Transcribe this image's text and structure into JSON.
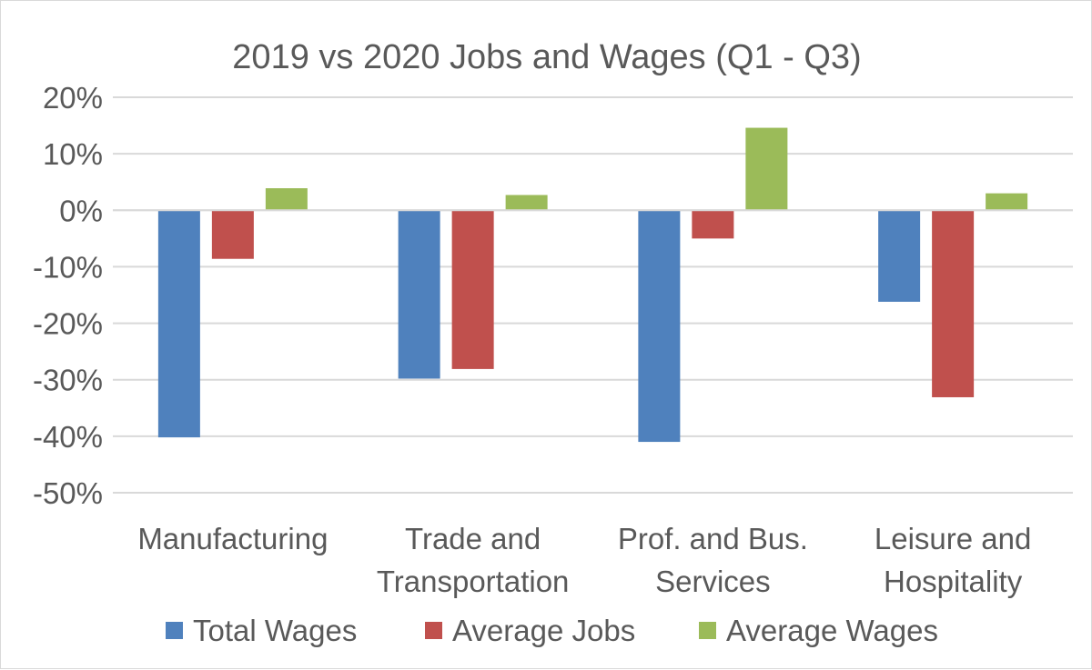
{
  "chart_data": {
    "type": "bar",
    "title": "2019 vs 2020 Jobs and Wages (Q1 - Q3)",
    "categories": [
      [
        "Manufacturing"
      ],
      [
        "Trade and",
        "Transportation"
      ],
      [
        "Prof. and Bus.",
        "Services"
      ],
      [
        "Leisure and",
        "Hospitality"
      ]
    ],
    "series": [
      {
        "name": "Total Wages",
        "color": "#4f81bd",
        "values": [
          -40.2,
          -29.8,
          -41.0,
          -16.2
        ]
      },
      {
        "name": "Average Jobs",
        "color": "#c0504d",
        "values": [
          -8.6,
          -28.1,
          -5.0,
          -33.1
        ]
      },
      {
        "name": "Average Wages",
        "color": "#9bbb59",
        "values": [
          3.9,
          2.7,
          14.6,
          3.0
        ]
      }
    ],
    "ylim": [
      -50,
      20
    ],
    "yticks": [
      20,
      10,
      0,
      -10,
      -20,
      -30,
      -40,
      -50
    ],
    "ytick_labels": [
      "20%",
      "10%",
      "0%",
      "-10%",
      "-20%",
      "-30%",
      "-40%",
      "-50%"
    ],
    "grid": true,
    "legend": "bottom",
    "xlabel": "",
    "ylabel": ""
  }
}
